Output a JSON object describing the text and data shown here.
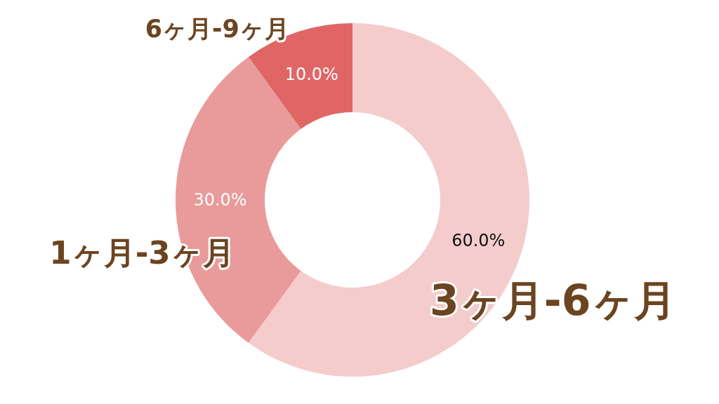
{
  "chart_data": {
    "type": "donut",
    "categories": [
      "3ヶ月-6ヶ月",
      "1ヶ月-3ヶ月",
      "6ヶ月-9ヶ月"
    ],
    "values": [
      60,
      30,
      10
    ],
    "colors": [
      "#f4cccc",
      "#e99a9a",
      "#e06666"
    ],
    "value_labels": [
      "60.0%",
      "30.0%",
      "10.0%"
    ],
    "legend": false
  }
}
